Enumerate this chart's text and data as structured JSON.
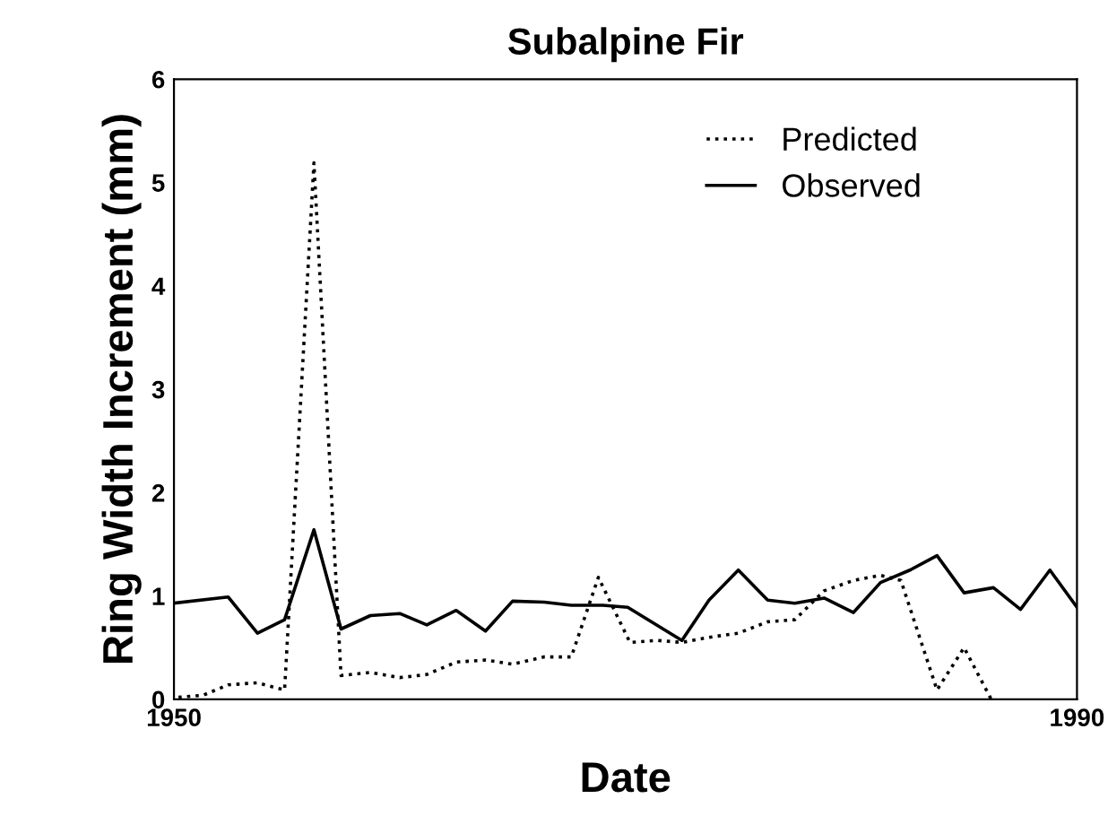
{
  "chart_data": {
    "type": "line",
    "title": "Subalpine Fir",
    "xlabel": "Date",
    "ylabel": "Ring Width Increment (mm)",
    "xlim": [
      1950,
      1990
    ],
    "xticks": [
      1950,
      1990
    ],
    "ylim": [
      0,
      6
    ],
    "yticks": [
      0,
      1,
      2,
      3,
      4,
      5,
      6
    ],
    "grid": false,
    "legend": "top right",
    "series": [
      {
        "name": "Predicted",
        "color": "#000000",
        "line_style": "dotted",
        "x": [
          1950.2,
          1951.3,
          1952.4,
          1953.7,
          1954.9,
          1956.2,
          1957.4,
          1958.7,
          1960.0,
          1961.2,
          1962.5,
          1963.8,
          1965.0,
          1966.4,
          1967.6,
          1968.8,
          1970.2,
          1971.4,
          1972.5,
          1973.7,
          1975.0,
          1976.3,
          1977.5,
          1978.8,
          1980.1,
          1981.3,
          1982.2,
          1983.8,
          1985.0,
          1986.2
        ],
        "values": [
          0.02,
          0.04,
          0.14,
          0.16,
          0.09,
          5.19,
          0.23,
          0.26,
          0.21,
          0.24,
          0.36,
          0.38,
          0.34,
          0.41,
          0.41,
          1.18,
          0.55,
          0.57,
          0.55,
          0.6,
          0.64,
          0.75,
          0.77,
          1.05,
          1.15,
          1.2,
          1.15,
          0.09,
          0.5,
          0.0
        ]
      },
      {
        "name": "Observed",
        "color": "#000000",
        "line_style": "solid",
        "x": [
          1950,
          1952.4,
          1953.7,
          1954.9,
          1956.2,
          1957.4,
          1958.7,
          1960.0,
          1961.2,
          1962.5,
          1963.8,
          1965.0,
          1966.4,
          1967.6,
          1969.0,
          1970.1,
          1972.5,
          1973.7,
          1975.0,
          1976.3,
          1977.5,
          1978.8,
          1980.1,
          1981.3,
          1982.6,
          1983.8,
          1985.0,
          1986.3,
          1987.5,
          1988.8,
          1990.0
        ],
        "values": [
          0.93,
          0.99,
          0.64,
          0.77,
          1.64,
          0.68,
          0.81,
          0.83,
          0.72,
          0.86,
          0.66,
          0.95,
          0.94,
          0.91,
          0.91,
          0.89,
          0.57,
          0.96,
          1.25,
          0.96,
          0.93,
          0.98,
          0.84,
          1.13,
          1.25,
          1.39,
          1.03,
          1.08,
          0.87,
          1.25,
          0.89
        ]
      }
    ]
  }
}
